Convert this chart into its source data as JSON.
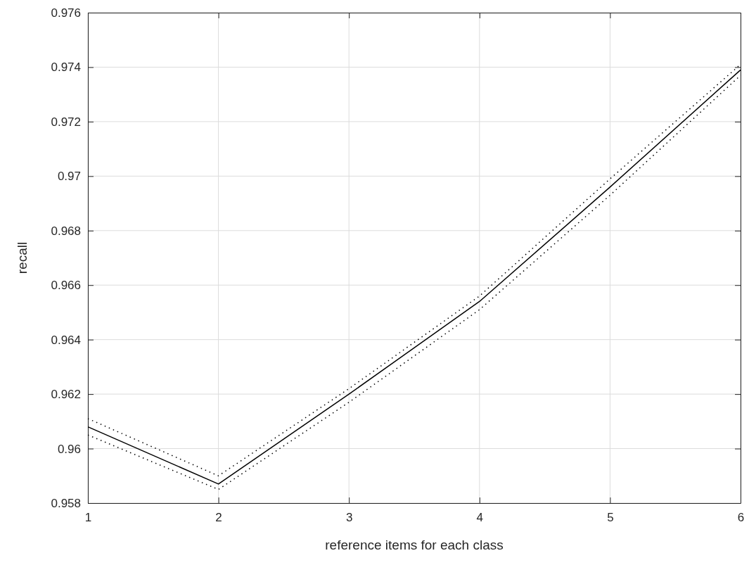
{
  "chart_data": {
    "type": "line",
    "xlabel": "reference items for each class",
    "ylabel": "recall",
    "x": [
      1,
      2,
      3,
      4,
      5,
      6
    ],
    "series": [
      {
        "color": "#000000",
        "values": [
          0.9608,
          0.9587,
          0.962,
          0.9654,
          0.9696,
          0.9739
        ]
      },
      {
        "color": "#000000",
        "line_style": "dotted",
        "values": [
          0.9605,
          0.9585,
          0.9617,
          0.9651,
          0.9693,
          0.9737
        ]
      },
      {
        "color": "#000000",
        "line_style": "dotted",
        "values": [
          0.9611,
          0.959,
          0.9622,
          0.9656,
          0.9699,
          0.9741
        ]
      }
    ],
    "xlim": [
      1,
      6
    ],
    "xticks": [
      1,
      2,
      3,
      4,
      5,
      6
    ],
    "ylim": [
      0.958,
      0.976
    ],
    "yticks": [
      {
        "value": 0.958,
        "label": "0.958"
      },
      {
        "value": 0.96,
        "label": "0.96"
      },
      {
        "value": 0.962,
        "label": "0.962"
      },
      {
        "value": 0.964,
        "label": "0.964"
      },
      {
        "value": 0.966,
        "label": "0.966"
      },
      {
        "value": 0.968,
        "label": "0.968"
      },
      {
        "value": 0.97,
        "label": "0.97"
      },
      {
        "value": 0.972,
        "label": "0.972"
      },
      {
        "value": 0.974,
        "label": "0.974"
      },
      {
        "value": 0.976,
        "label": "0.976"
      }
    ],
    "grid": true,
    "line_style": "solid"
  }
}
